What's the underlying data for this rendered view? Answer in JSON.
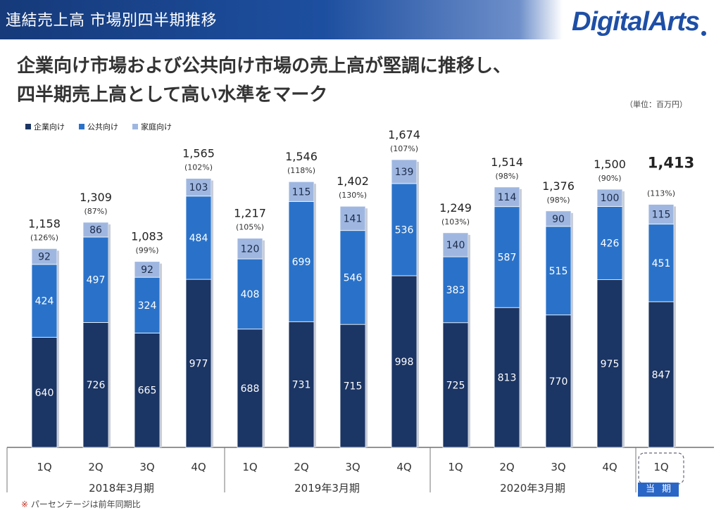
{
  "header": {
    "title": "連結売上高 市場別四半期推移"
  },
  "logo": {
    "text": "DigitalArts"
  },
  "headline": {
    "line1": "企業向け市場および公共向け市場の売上高が堅調に推移し、",
    "line2": "四半期売上高として高い水準をマーク"
  },
  "unit_label": "（単位：百万円）",
  "footnote": {
    "mark": "※",
    "text": "パーセンテージは前年同期比"
  },
  "current_badge": "当期",
  "colors": {
    "enterprise": "#1b3564",
    "public": "#2a72c9",
    "home": "#9fb7e0",
    "header_dark": "#163a7a"
  },
  "chart_data": {
    "type": "bar",
    "stacked": true,
    "title": "",
    "xlabel": "",
    "ylabel": "",
    "ylim": [
      0,
      1750
    ],
    "legend": [
      "企業向け",
      "公共向け",
      "家庭向け"
    ],
    "categories": [
      "1Q",
      "2Q",
      "3Q",
      "4Q",
      "1Q",
      "2Q",
      "3Q",
      "4Q",
      "1Q",
      "2Q",
      "3Q",
      "4Q",
      "1Q"
    ],
    "groups": [
      {
        "label": "2018年3月期",
        "count": 4
      },
      {
        "label": "2019年3月期",
        "count": 4
      },
      {
        "label": "2020年3月期",
        "count": 4
      },
      {
        "label": "",
        "count": 1
      }
    ],
    "series": [
      {
        "name": "企業向け",
        "values": [
          640,
          726,
          665,
          977,
          688,
          731,
          715,
          998,
          725,
          813,
          770,
          975,
          847
        ]
      },
      {
        "name": "公共向け",
        "values": [
          424,
          497,
          324,
          484,
          408,
          699,
          546,
          536,
          383,
          587,
          515,
          426,
          451
        ]
      },
      {
        "name": "家庭向け",
        "values": [
          92,
          86,
          92,
          103,
          120,
          115,
          141,
          139,
          140,
          114,
          90,
          100,
          115
        ]
      }
    ],
    "totals": [
      "1,158",
      "1,309",
      "1,083",
      "1,565",
      "1,217",
      "1,546",
      "1,402",
      "1,674",
      "1,249",
      "1,514",
      "1,376",
      "1,500",
      "1,413"
    ],
    "yoy": [
      "(126%)",
      "(87%)",
      "(99%)",
      "(102%)",
      "(105%)",
      "(118%)",
      "(130%)",
      "(107%)",
      "(103%)",
      "(98%)",
      "(98%)",
      "(90%)",
      "(113%)"
    ]
  }
}
